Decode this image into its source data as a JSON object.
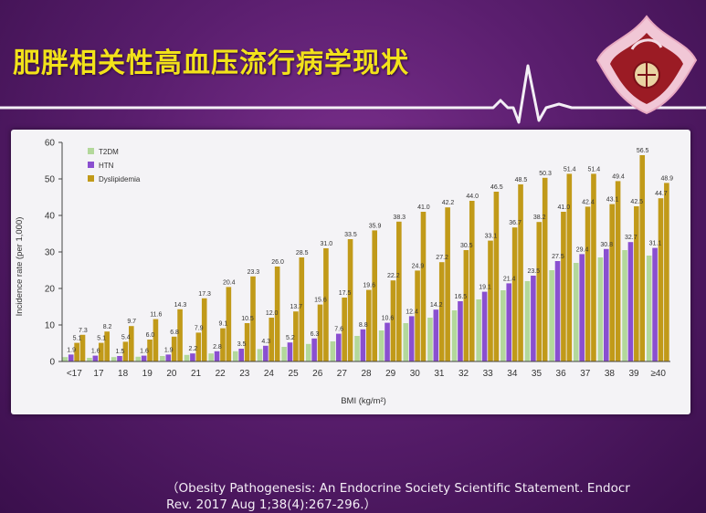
{
  "slide": {
    "title": "肥胖相关性高血压流行病学现状",
    "citation_line1": "（Obesity Pathogenesis: An Endocrine Society Scientific Statement. Endocr",
    "citation_line2": "Rev. 2017 Aug 1;38(4):267-296.）"
  },
  "colors": {
    "background": "#5a1e6e",
    "title": "#f2e21a",
    "ekg_line": "#f3eef5",
    "t2dm": "#b3d89b",
    "htn": "#8a4fd0",
    "dyslipidemia": "#c19a19"
  },
  "chart_data": {
    "type": "bar",
    "title": "",
    "xlabel": "BMI (kg/m²)",
    "ylabel": "Incidence rate (per 1,000)",
    "ylim": [
      0,
      60
    ],
    "yticks": [
      "0",
      "10",
      "20",
      "30",
      "40",
      "50",
      "60"
    ],
    "legend_position": "top-left",
    "categories": [
      "<17",
      "17",
      "18",
      "19",
      "20",
      "21",
      "22",
      "23",
      "24",
      "25",
      "26",
      "27",
      "28",
      "29",
      "30",
      "31",
      "32",
      "33",
      "34",
      "35",
      "36",
      "37",
      "38",
      "39",
      "≥40"
    ],
    "series": [
      {
        "name": "T2DM",
        "color": "#b3d89b",
        "values": [
          1.2,
          1.0,
          1.2,
          1.3,
          1.5,
          1.8,
          2.2,
          2.8,
          3.4,
          4.0,
          4.8,
          5.5,
          7.0,
          8.5,
          10.5,
          12.0,
          14.0,
          17.0,
          19.5,
          22.0,
          25.0,
          27.0,
          28.5,
          30.5,
          29.0
        ],
        "labels": []
      },
      {
        "name": "HTN",
        "color": "#8a4fd0",
        "values": [
          1.9,
          1.6,
          1.5,
          1.6,
          1.9,
          2.2,
          2.8,
          3.5,
          4.3,
          5.2,
          6.3,
          7.6,
          8.8,
          10.6,
          12.4,
          14.2,
          16.5,
          19.1,
          21.4,
          23.5,
          27.5,
          29.4,
          30.8,
          32.7,
          31.1
        ],
        "labels": [
          "1.9",
          "1.6",
          "1.5",
          "1.6",
          "1.9",
          "2.2",
          "2.8",
          "3.5",
          "4.3",
          "5.2",
          "6.3",
          "7.6",
          "8.8",
          "10.6",
          "12.4",
          "14.2",
          "16.5",
          "19.1",
          "21.4",
          "23.5",
          "27.5",
          "29.4",
          "30.8",
          "32.7",
          "31.1"
        ]
      },
      {
        "name": "Dyslipidemia",
        "color": "#c19a19",
        "values": [
          5.1,
          5.1,
          5.4,
          6.0,
          6.8,
          7.9,
          9.1,
          10.5,
          12.0,
          13.7,
          15.6,
          17.5,
          19.6,
          22.2,
          24.9,
          27.2,
          30.5,
          33.1,
          36.7,
          38.2,
          41.0,
          42.4,
          43.1,
          42.5,
          44.7
        ],
        "labels": [
          "5.1",
          "5.1",
          "5.4",
          "6.0",
          "6.8",
          "7.9",
          "9.1",
          "10.5",
          "12.0",
          "13.7",
          "15.6",
          "17.5",
          "19.6",
          "22.2",
          "24.9",
          "27.2",
          "30.5",
          "33.1",
          "36.7",
          "38.2",
          "41.0",
          "42.4",
          "43.1",
          "42.5",
          "44.7"
        ]
      },
      {
        "name": "",
        "color": "#c19a19",
        "values": [
          7.3,
          8.2,
          9.7,
          11.6,
          14.3,
          17.3,
          20.4,
          23.3,
          26.0,
          28.5,
          31.0,
          33.5,
          35.9,
          38.3,
          41.0,
          42.2,
          44.0,
          46.5,
          48.5,
          50.3,
          51.4,
          51.4,
          49.4,
          56.5,
          48.9
        ],
        "labels": [
          "7.3",
          "8.2",
          "9.7",
          "11.6",
          "14.3",
          "17.3",
          "20.4",
          "23.3",
          "26.0",
          "28.5",
          "31.0",
          "33.5",
          "35.9",
          "38.3",
          "41.0",
          "42.2",
          "44.0",
          "46.5",
          "48.5",
          "50.3",
          "51.4",
          "51.4",
          "49.4",
          "56.5",
          "48.9"
        ]
      }
    ]
  }
}
